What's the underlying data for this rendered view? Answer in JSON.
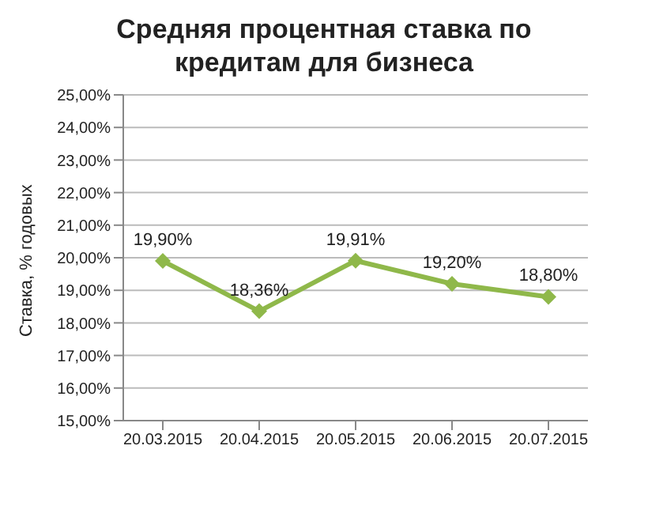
{
  "chart_data": {
    "type": "line",
    "title": "Средняя процентная ставка по кредитам для бизнеса",
    "ylabel": "Ставка, % годовых",
    "categories": [
      "20.03.2015",
      "20.04.2015",
      "20.05.2015",
      "20.06.2015",
      "20.07.2015"
    ],
    "series": [
      {
        "color": "#8fb84a",
        "values": [
          19.9,
          18.36,
          19.91,
          19.2,
          18.8
        ],
        "value_labels": [
          "19,90%",
          "18,36%",
          "19,91%",
          "19,20%",
          "18,80%"
        ]
      }
    ],
    "ylim": [
      15,
      25
    ],
    "yticks": [
      {
        "value": 15,
        "label": "15,00%"
      },
      {
        "value": 16,
        "label": "16,00%"
      },
      {
        "value": 17,
        "label": "17,00%"
      },
      {
        "value": 18,
        "label": "18,00%"
      },
      {
        "value": 19,
        "label": "19,00%"
      },
      {
        "value": 20,
        "label": "20,00%"
      },
      {
        "value": 21,
        "label": "21,00%"
      },
      {
        "value": 22,
        "label": "22,00%"
      },
      {
        "value": 23,
        "label": "23,00%"
      },
      {
        "value": 24,
        "label": "24,00%"
      },
      {
        "value": 25,
        "label": "25,00%"
      }
    ],
    "grid": "y",
    "marker": "diamond",
    "line_style": "solid"
  }
}
